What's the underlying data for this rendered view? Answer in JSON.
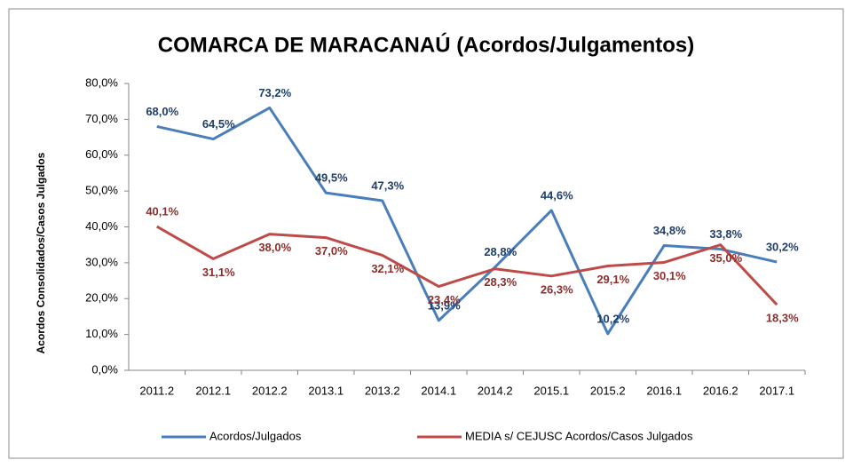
{
  "chart_data": {
    "type": "line",
    "title": "COMARCA DE MARACANAÚ (Acordos/Julgamentos)",
    "y_label": "Acordos Consolidados/Casos Julgados",
    "categories": [
      "2011.2",
      "2012.1",
      "2012.2",
      "2013.1",
      "2013.2",
      "2014.1",
      "2014.2",
      "2015.1",
      "2015.2",
      "2016.1",
      "2016.2",
      "2017.1"
    ],
    "series": [
      {
        "name": "Acordos/Julgados",
        "color": "#4a7ebb",
        "values": [
          68.0,
          64.5,
          73.2,
          49.5,
          47.3,
          13.9,
          28.8,
          44.6,
          10.2,
          34.8,
          33.8,
          30.2
        ],
        "value_labels": [
          "68,0%",
          "64,5%",
          "73,2%",
          "49,5%",
          "47,3%",
          "13,9%",
          "28,8%",
          "44,6%",
          "10,2%",
          "34,8%",
          "33,8%",
          "30,2%"
        ]
      },
      {
        "name": "MEDIA s/ CEJUSC Acordos/Casos Julgados",
        "color": "#be4b48",
        "values": [
          40.1,
          31.1,
          38.0,
          37.0,
          32.1,
          23.4,
          28.3,
          26.3,
          29.1,
          30.1,
          35.0,
          18.3
        ],
        "value_labels": [
          "40,1%",
          "31,1%",
          "38,0%",
          "37,0%",
          "32,1%",
          "23,4%",
          "28,3%",
          "26,3%",
          "29,1%",
          "30,1%",
          "35,0%",
          "18,3%"
        ]
      }
    ],
    "ylim": [
      0,
      80
    ],
    "yticks": [
      {
        "value": 0,
        "label": "0,0%"
      },
      {
        "value": 10,
        "label": "10,0%"
      },
      {
        "value": 20,
        "label": "20,0%"
      },
      {
        "value": 30,
        "label": "30,0%"
      },
      {
        "value": 40,
        "label": "40,0%"
      },
      {
        "value": 50,
        "label": "50,0%"
      },
      {
        "value": 60,
        "label": "60,0%"
      },
      {
        "value": 70,
        "label": "70,0%"
      },
      {
        "value": 80,
        "label": "80,0%"
      }
    ],
    "legend": "bottom"
  }
}
